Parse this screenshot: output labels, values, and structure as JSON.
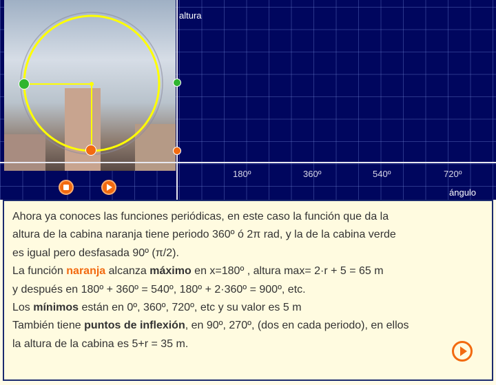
{
  "graph": {
    "y_axis_label": "altura",
    "x_axis_label": "ángulo",
    "x_ticks": [
      "180º",
      "360º",
      "540º",
      "720º"
    ],
    "colors": {
      "background": "#00065e",
      "circle": "#ffff00",
      "orange_cabin": "#f26a10",
      "green_cabin": "#2fb52f"
    }
  },
  "controls": {
    "stop_icon": "stop-icon",
    "play_icon": "play-icon"
  },
  "text": {
    "l1": "Ahora ya conoces  las  funciones  periódicas, en este caso la función que da la",
    "l2": "altura  de la cabina naranja tiene periodo 360º ó 2π rad,  y la de la cabina verde",
    "l3": "es igual pero desfasada 90º (π/2).",
    "l4a": "La función ",
    "l4b": "naranja",
    "l4c": " alcanza ",
    "l4d": "máximo",
    "l4e": " en  x=180º , altura max= 2·r + 5 = 65 m",
    "l5": "y después en 180º + 360º = 540º,  180º + 2·360º = 900º, etc.",
    "l6a": "Los ",
    "l6b": "mínimos",
    "l6c": " están en 0º, 360º, 720º, etc y su valor es 5 m",
    "l7a": "También tiene ",
    "l7b": "puntos de inflexión",
    "l7c": ", en 90º, 270º, (dos en cada periodo), en ellos",
    "l8": "la altura de la cabina es 5+r = 35 m."
  }
}
